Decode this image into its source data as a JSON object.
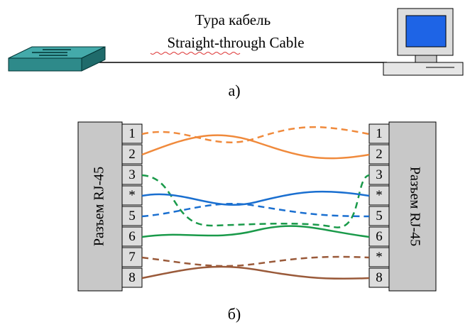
{
  "top": {
    "title": "Тура кабель",
    "subtitle": "Straight-through Cable",
    "caption": "а)"
  },
  "bottom": {
    "left": {
      "label": "Разъем RJ-45",
      "pins": [
        "1",
        "2",
        "3",
        "*",
        "5",
        "6",
        "7",
        "8"
      ]
    },
    "right": {
      "label": "Разъем RJ-45",
      "pins": [
        "1",
        "2",
        "3",
        "*",
        "5",
        "6",
        "*",
        "8"
      ]
    },
    "caption": "б)"
  }
}
